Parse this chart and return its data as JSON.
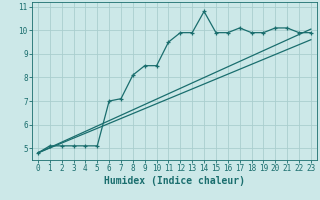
{
  "xlabel": "Humidex (Indice chaleur)",
  "background_color": "#cce8e8",
  "grid_color": "#aacece",
  "line_color": "#1a6e6e",
  "xlim": [
    -0.5,
    23.5
  ],
  "ylim": [
    4.5,
    11.2
  ],
  "xticks": [
    0,
    1,
    2,
    3,
    4,
    5,
    6,
    7,
    8,
    9,
    10,
    11,
    12,
    13,
    14,
    15,
    16,
    17,
    18,
    19,
    20,
    21,
    22,
    23
  ],
  "yticks": [
    5,
    6,
    7,
    8,
    9,
    10,
    11
  ],
  "line1_x": [
    0,
    1,
    2,
    3,
    4,
    5,
    6,
    7,
    8,
    9,
    10,
    11,
    12,
    13,
    14,
    15,
    16,
    17,
    18,
    19,
    20,
    21,
    22,
    23
  ],
  "line1_y": [
    4.8,
    5.1,
    5.1,
    5.1,
    5.1,
    5.1,
    7.0,
    7.1,
    8.1,
    8.5,
    8.5,
    9.5,
    9.9,
    9.9,
    10.8,
    9.9,
    9.9,
    10.1,
    9.9,
    9.9,
    10.1,
    10.1,
    9.9,
    9.9
  ],
  "line2_x": [
    0,
    23
  ],
  "line2_y": [
    4.8,
    10.05
  ],
  "line3_x": [
    0,
    23
  ],
  "line3_y": [
    4.8,
    9.6
  ],
  "font_color": "#1a6e6e",
  "tick_fontsize": 5.5,
  "label_fontsize": 7.0,
  "spine_color": "#1a6e6e"
}
